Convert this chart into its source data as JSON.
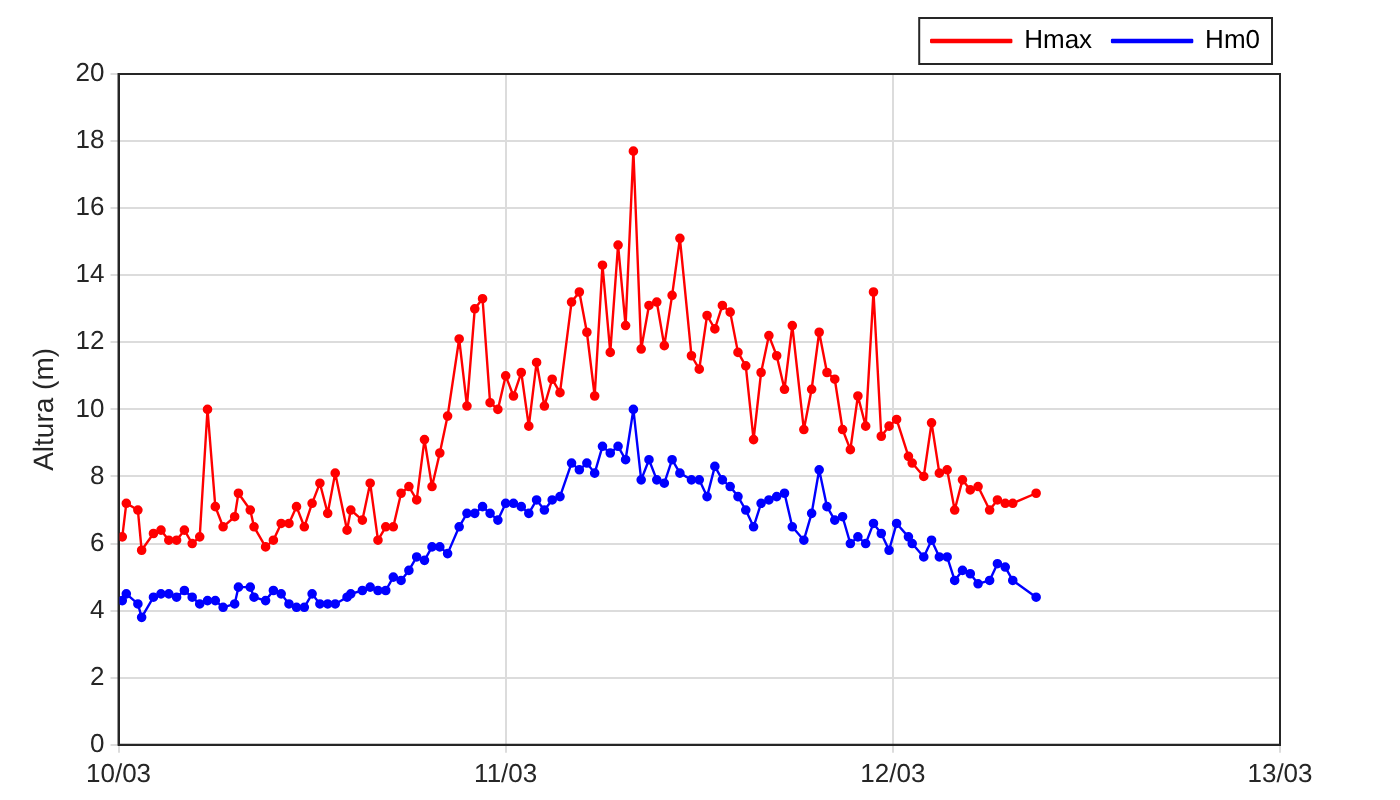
{
  "chart_data": {
    "type": "line",
    "ylabel": "Altura (m)",
    "x": [
      "--03-10T00:14",
      "--03-10T00:29",
      "--03-10T01:12",
      "--03-10T01:26",
      "--03-10T02:10",
      "--03-10T02:38",
      "--03-10T03:07",
      "--03-10T03:36",
      "--03-10T04:05",
      "--03-10T04:34",
      "--03-10T05:02",
      "--03-10T05:31",
      "--03-10T06:00",
      "--03-10T06:29",
      "--03-10T07:12",
      "--03-10T07:26",
      "--03-10T08:10",
      "--03-10T08:24",
      "--03-10T09:07",
      "--03-10T09:36",
      "--03-10T10:05",
      "--03-10T10:34",
      "--03-10T11:02",
      "--03-10T11:31",
      "--03-10T12:00",
      "--03-10T12:29",
      "--03-10T12:58",
      "--03-10T13:26",
      "--03-10T14:10",
      "--03-10T14:24",
      "--03-10T15:07",
      "--03-10T15:36",
      "--03-10T16:05",
      "--03-10T16:34",
      "--03-10T17:02",
      "--03-10T17:31",
      "--03-10T18:00",
      "--03-10T18:29",
      "--03-10T18:58",
      "--03-10T19:26",
      "--03-10T19:55",
      "--03-10T20:24",
      "--03-10T21:07",
      "--03-10T21:36",
      "--03-10T22:05",
      "--03-10T22:34",
      "--03-10T23:02",
      "--03-10T23:31",
      "--03-11T00:00",
      "--03-11T00:29",
      "--03-11T00:58",
      "--03-11T01:26",
      "--03-11T01:55",
      "--03-11T02:24",
      "--03-11T02:53",
      "--03-11T03:22",
      "--03-11T04:05",
      "--03-11T04:34",
      "--03-11T05:02",
      "--03-11T05:31",
      "--03-11T06:00",
      "--03-11T06:29",
      "--03-11T06:58",
      "--03-11T07:26",
      "--03-11T07:55",
      "--03-11T08:24",
      "--03-11T08:53",
      "--03-11T09:22",
      "--03-11T09:50",
      "--03-11T10:19",
      "--03-11T10:48",
      "--03-11T11:31",
      "--03-11T12:00",
      "--03-11T12:29",
      "--03-11T12:58",
      "--03-11T13:26",
      "--03-11T13:55",
      "--03-11T14:24",
      "--03-11T14:53",
      "--03-11T15:22",
      "--03-11T15:50",
      "--03-11T16:19",
      "--03-11T16:48",
      "--03-11T17:17",
      "--03-11T17:46",
      "--03-11T18:29",
      "--03-11T18:58",
      "--03-11T19:26",
      "--03-11T19:55",
      "--03-11T20:24",
      "--03-11T20:53",
      "--03-11T21:22",
      "--03-11T21:50",
      "--03-11T22:19",
      "--03-11T22:48",
      "--03-11T23:17",
      "--03-11T23:46",
      "--03-12T00:14",
      "--03-12T00:58",
      "--03-12T01:12",
      "--03-12T01:55",
      "--03-12T02:24",
      "--03-12T02:53",
      "--03-12T03:22",
      "--03-12T03:50",
      "--03-12T04:19",
      "--03-12T04:48",
      "--03-12T05:17",
      "--03-12T06:00",
      "--03-12T06:29",
      "--03-12T06:58",
      "--03-12T07:26",
      "--03-12T08:53"
    ],
    "series": [
      {
        "name": "Hmax",
        "color": "#ff0000",
        "values": [
          6.2,
          7.2,
          7.0,
          5.8,
          6.3,
          6.4,
          6.1,
          6.1,
          6.4,
          6.0,
          6.2,
          10.0,
          7.1,
          6.5,
          6.8,
          7.5,
          7.0,
          6.5,
          5.9,
          6.1,
          6.6,
          6.6,
          7.1,
          6.5,
          7.2,
          7.8,
          6.9,
          8.1,
          6.4,
          7.0,
          6.7,
          7.8,
          6.1,
          6.5,
          6.5,
          7.5,
          7.7,
          7.3,
          9.1,
          7.7,
          8.7,
          9.8,
          12.1,
          10.1,
          13.0,
          13.3,
          10.2,
          10.0,
          11.0,
          10.4,
          11.1,
          9.5,
          11.4,
          10.1,
          10.9,
          10.5,
          13.2,
          13.5,
          12.3,
          10.4,
          14.3,
          11.7,
          14.9,
          12.5,
          17.7,
          11.8,
          13.1,
          13.2,
          11.9,
          13.4,
          15.1,
          11.6,
          11.2,
          12.8,
          12.4,
          13.1,
          12.9,
          11.7,
          11.3,
          9.1,
          11.1,
          12.2,
          11.6,
          10.6,
          12.5,
          9.4,
          10.6,
          12.3,
          11.1,
          10.9,
          9.4,
          8.8,
          10.4,
          9.5,
          13.5,
          9.2,
          9.5,
          9.7,
          8.6,
          8.4,
          8.0,
          9.6,
          8.1,
          8.2,
          7.0,
          7.9,
          7.6,
          7.7,
          7.0,
          7.3,
          7.2,
          7.2,
          7.5
        ]
      },
      {
        "name": "Hm0",
        "color": "#0000ff",
        "values": [
          4.3,
          4.5,
          4.2,
          3.8,
          4.4,
          4.5,
          4.5,
          4.4,
          4.6,
          4.4,
          4.2,
          4.3,
          4.3,
          4.1,
          4.2,
          4.7,
          4.7,
          4.4,
          4.3,
          4.6,
          4.5,
          4.2,
          4.1,
          4.1,
          4.5,
          4.2,
          4.2,
          4.2,
          4.4,
          4.5,
          4.6,
          4.7,
          4.6,
          4.6,
          5.0,
          4.9,
          5.2,
          5.6,
          5.5,
          5.9,
          5.9,
          5.7,
          6.5,
          6.9,
          6.9,
          7.1,
          6.9,
          6.7,
          7.2,
          7.2,
          7.1,
          6.9,
          7.3,
          7.0,
          7.3,
          7.4,
          8.4,
          8.2,
          8.4,
          8.1,
          8.9,
          8.7,
          8.9,
          8.5,
          10.0,
          7.9,
          8.5,
          7.9,
          7.8,
          8.5,
          8.1,
          7.9,
          7.9,
          7.4,
          8.3,
          7.9,
          7.7,
          7.4,
          7.0,
          6.5,
          7.2,
          7.3,
          7.4,
          7.5,
          6.5,
          6.1,
          6.9,
          8.2,
          7.1,
          6.7,
          6.8,
          6.0,
          6.2,
          6.0,
          6.6,
          6.3,
          5.8,
          6.6,
          6.2,
          6.0,
          5.6,
          6.1,
          5.6,
          5.6,
          4.9,
          5.2,
          5.1,
          4.8,
          4.9,
          5.4,
          5.3,
          4.9,
          4.4
        ]
      }
    ],
    "xlim": [
      "--03-10",
      "--03-13"
    ],
    "xticks": [
      {
        "value": "--03-10",
        "label": "10/03"
      },
      {
        "value": "--03-11",
        "label": "11/03"
      },
      {
        "value": "--03-12",
        "label": "12/03"
      },
      {
        "value": "--03-13",
        "label": "13/03"
      }
    ],
    "ylim": [
      0,
      20
    ],
    "yticks": [
      0,
      2,
      4,
      6,
      8,
      10,
      12,
      14,
      16,
      18,
      20
    ],
    "grid": true,
    "legend": "top right",
    "marker": "circle",
    "line_style": "solid"
  }
}
